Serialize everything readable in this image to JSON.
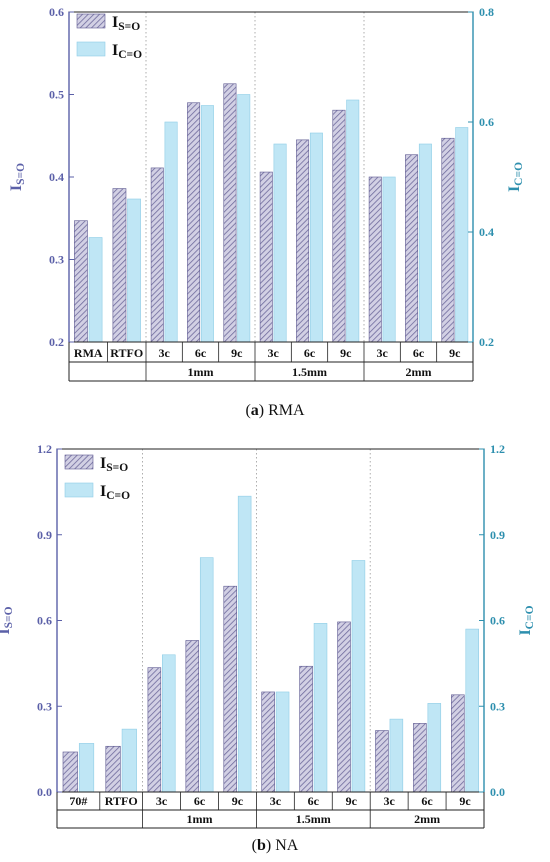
{
  "chart_data": [
    {
      "type": "bar",
      "caption": {
        "letter": "a",
        "text": " RMA"
      },
      "y_left": {
        "label_main": "I",
        "label_sub": "S=O",
        "ticks": [
          "0.2",
          "0.3",
          "0.4",
          "0.5",
          "0.6"
        ],
        "range": [
          0.2,
          0.6
        ]
      },
      "y_right": {
        "label_main": "I",
        "label_sub": "C=O",
        "ticks": [
          "0.2",
          "0.4",
          "0.6",
          "0.8"
        ],
        "range": [
          0.2,
          0.8
        ]
      },
      "categories": [
        "RMA",
        "RTFO",
        "3c",
        "6c",
        "9c",
        "3c",
        "6c",
        "9c",
        "3c",
        "6c",
        "9c"
      ],
      "groups": [
        {
          "label": "",
          "span": [
            0,
            1
          ]
        },
        {
          "label": "1mm",
          "span": [
            2,
            4
          ]
        },
        {
          "label": "1.5mm",
          "span": [
            5,
            7
          ]
        },
        {
          "label": "2mm",
          "span": [
            8,
            10
          ]
        }
      ],
      "series": [
        {
          "name_main": "I",
          "name_sub": "S=O",
          "axis": "left",
          "values": [
            0.347,
            0.386,
            0.411,
            0.49,
            0.513,
            0.406,
            0.445,
            0.481,
            0.4,
            0.427,
            0.447
          ]
        },
        {
          "name_main": "I",
          "name_sub": "C=O",
          "axis": "right",
          "values": [
            0.39,
            0.46,
            0.6,
            0.63,
            0.65,
            0.56,
            0.58,
            0.64,
            0.5,
            0.56,
            0.59
          ]
        }
      ],
      "legend_position": "top-left",
      "grid": "vertical-dotted-between-groups"
    },
    {
      "type": "bar",
      "caption": {
        "letter": "b",
        "text": " NA"
      },
      "y_left": {
        "label_main": "I",
        "label_sub": "S=O",
        "ticks": [
          "0.0",
          "0.3",
          "0.6",
          "0.9",
          "1.2"
        ],
        "range": [
          0,
          1.2
        ]
      },
      "y_right": {
        "label_main": "I",
        "label_sub": "C=O",
        "ticks": [
          "0.0",
          "0.3",
          "0.6",
          "0.9",
          "1.2"
        ],
        "range": [
          0,
          1.2
        ]
      },
      "categories": [
        "70#",
        "RTFO",
        "3c",
        "6c",
        "9c",
        "3c",
        "6c",
        "9c",
        "3c",
        "6c",
        "9c"
      ],
      "groups": [
        {
          "label": "",
          "span": [
            0,
            1
          ]
        },
        {
          "label": "1mm",
          "span": [
            2,
            4
          ]
        },
        {
          "label": "1.5mm",
          "span": [
            5,
            7
          ]
        },
        {
          "label": "2mm",
          "span": [
            8,
            10
          ]
        }
      ],
      "series": [
        {
          "name_main": "I",
          "name_sub": "S=O",
          "axis": "left",
          "values": [
            0.14,
            0.16,
            0.435,
            0.53,
            0.72,
            0.35,
            0.44,
            0.595,
            0.215,
            0.24,
            0.34
          ]
        },
        {
          "name_main": "I",
          "name_sub": "C=O",
          "axis": "right",
          "values": [
            0.17,
            0.22,
            0.48,
            0.82,
            1.035,
            0.35,
            0.59,
            0.81,
            0.255,
            0.31,
            0.57
          ]
        }
      ],
      "legend_position": "top-left",
      "grid": "vertical-dotted-between-groups"
    }
  ],
  "colors": {
    "s_bar_fill": "#d2d0e4",
    "s_bar_stripe": "#6e6a9c",
    "s_bar_stroke": "#5c5890",
    "c_bar_fill": "#bfe6f5",
    "c_bar_stroke": "#8fcde6",
    "left_axis": "#5b60a8",
    "right_axis": "#2d8fae",
    "frame": "#222222"
  }
}
